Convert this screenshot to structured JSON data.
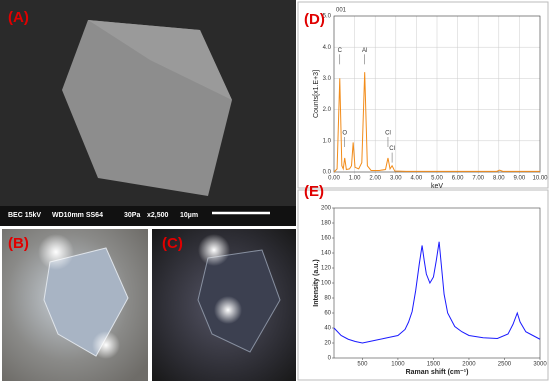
{
  "panels": [
    {
      "label": "(A)"
    },
    {
      "label": "(B)"
    },
    {
      "label": "(C)"
    }
  ],
  "sem_info": [
    "BEC 15kV",
    "WD10mm SS64",
    "30Pa",
    "x2,500",
    "10µm"
  ],
  "chart_data": [
    {
      "type": "line",
      "panel_label": "(D)",
      "header": "001",
      "x_label": "keV",
      "y_label": "Counts[x1.E+3]",
      "peak_labels": [
        "C",
        "O",
        "Al",
        "Cl",
        "Cl"
      ],
      "color": "#f28c1a",
      "grid": true,
      "xlim": [
        0,
        10
      ],
      "ylim": [
        0,
        5
      ],
      "xticks": [
        {
          "value": 0,
          "label": "0.00"
        },
        {
          "value": 1,
          "label": "1.00"
        },
        {
          "value": 2,
          "label": "2.00"
        },
        {
          "value": 3,
          "label": "3.00"
        },
        {
          "value": 4,
          "label": "4.00"
        },
        {
          "value": 5,
          "label": "5.00"
        },
        {
          "value": 6,
          "label": "6.00"
        },
        {
          "value": 7,
          "label": "7.00"
        },
        {
          "value": 8,
          "label": "8.00"
        },
        {
          "value": 9,
          "label": "9.00"
        },
        {
          "value": 10,
          "label": "10.00"
        }
      ],
      "yticks": [
        {
          "value": 0,
          "label": "0.0"
        },
        {
          "value": 1,
          "label": "1.0"
        },
        {
          "value": 2,
          "label": "2.0"
        },
        {
          "value": 3,
          "label": "3.0"
        },
        {
          "value": 4,
          "label": "4.0"
        },
        {
          "value": 5,
          "label": "5.0"
        }
      ],
      "x": [
        0,
        0.15,
        0.28,
        0.38,
        0.45,
        0.52,
        0.6,
        0.75,
        0.85,
        0.93,
        1.02,
        1.2,
        1.35,
        1.49,
        1.62,
        1.8,
        2.2,
        2.5,
        2.62,
        2.72,
        2.82,
        2.95,
        3.5,
        5,
        7,
        7.9,
        8.04,
        8.2,
        10
      ],
      "values": [
        0,
        0.1,
        3.0,
        0.2,
        0.1,
        0.45,
        0.08,
        0.1,
        0.2,
        0.95,
        0.15,
        0.1,
        0.3,
        3.2,
        0.2,
        0.05,
        0.05,
        0.08,
        0.45,
        0.1,
        0.2,
        0.03,
        0.02,
        0.02,
        0.02,
        0.02,
        0.06,
        0.02,
        0.02
      ]
    },
    {
      "type": "line",
      "panel_label": "(E)",
      "x_label": "Raman shift (cm⁻¹)",
      "y_label": "Intensity (a.u.)",
      "color": "#1a1aff",
      "grid": false,
      "xlim": [
        100,
        3000
      ],
      "ylim": [
        0,
        200
      ],
      "xticks": [
        500,
        1000,
        1500,
        2000,
        2500,
        3000
      ],
      "yticks": [
        0,
        20,
        40,
        60,
        80,
        100,
        120,
        140,
        160,
        180,
        200
      ],
      "x": [
        100,
        200,
        300,
        400,
        500,
        600,
        700,
        800,
        900,
        1000,
        1100,
        1150,
        1200,
        1250,
        1300,
        1340,
        1370,
        1400,
        1450,
        1500,
        1540,
        1580,
        1610,
        1650,
        1700,
        1800,
        1900,
        2000,
        2200,
        2400,
        2550,
        2620,
        2680,
        2720,
        2800,
        2900,
        3000
      ],
      "values": [
        40,
        30,
        25,
        22,
        20,
        22,
        24,
        26,
        28,
        30,
        38,
        48,
        62,
        90,
        125,
        150,
        130,
        112,
        100,
        108,
        130,
        155,
        125,
        85,
        60,
        42,
        35,
        30,
        27,
        26,
        32,
        45,
        60,
        48,
        35,
        30,
        25
      ]
    }
  ]
}
